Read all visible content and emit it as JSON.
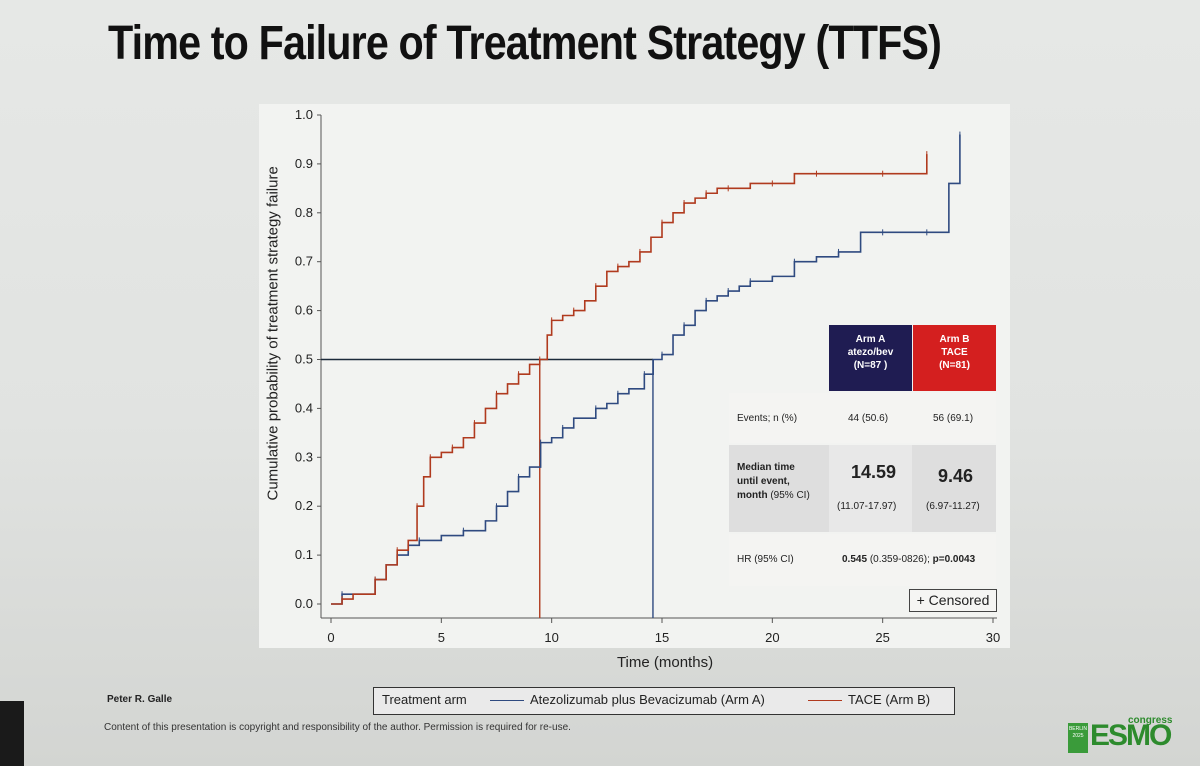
{
  "slide": {
    "title": "Time to Failure of Treatment Strategy (TTFS)",
    "author": "Peter R. Galle",
    "copyright": "Content of this presentation is copyright and responsibility of the author. Permission is required for re-use.",
    "logo": {
      "badge": "BERLIN 2025",
      "word": "ESMO",
      "suffix": "congress"
    }
  },
  "chart_data": {
    "type": "line",
    "title": "",
    "xlabel": "Time (months)",
    "ylabel": "Cumulative probability of treatment strategy failure",
    "xlim": [
      0,
      30
    ],
    "ylim": [
      0,
      1.0
    ],
    "xticks": [
      0,
      5,
      10,
      15,
      20,
      25,
      30
    ],
    "yticks": [
      0.0,
      0.1,
      0.2,
      0.3,
      0.4,
      0.5,
      0.6,
      0.7,
      0.8,
      0.9,
      1.0
    ],
    "grid": false,
    "legend_placement": "bottom",
    "median_reference": {
      "y": 0.5,
      "x_arm_a": 14.59,
      "x_arm_b": 9.46
    },
    "series": [
      {
        "name": "Atezolizumab plus Bevacizumab (Arm A)",
        "color": "#2f4a80",
        "step": true,
        "x": [
          0,
          0.5,
          1.0,
          2.0,
          2.5,
          3.0,
          3.5,
          4.0,
          5.0,
          6.0,
          7.0,
          7.5,
          8.0,
          8.5,
          9.0,
          9.5,
          10.0,
          10.5,
          11.0,
          12.0,
          12.5,
          13.0,
          13.5,
          14.2,
          14.6,
          15.0,
          15.5,
          16.0,
          16.5,
          17.0,
          17.5,
          18.0,
          18.5,
          19.0,
          20.0,
          21.0,
          22.0,
          23.0,
          24.0,
          25.0,
          26.0,
          27.0,
          28.0,
          28.5
        ],
        "y": [
          0.0,
          0.02,
          0.02,
          0.05,
          0.08,
          0.1,
          0.12,
          0.13,
          0.14,
          0.15,
          0.17,
          0.2,
          0.23,
          0.26,
          0.28,
          0.33,
          0.34,
          0.36,
          0.38,
          0.4,
          0.41,
          0.43,
          0.44,
          0.47,
          0.5,
          0.51,
          0.55,
          0.57,
          0.6,
          0.62,
          0.63,
          0.64,
          0.65,
          0.66,
          0.67,
          0.7,
          0.71,
          0.72,
          0.76,
          0.76,
          0.76,
          0.76,
          0.86,
          0.96
        ]
      },
      {
        "name": "TACE (Arm B)",
        "color": "#b03a1e",
        "step": true,
        "x": [
          0,
          0.5,
          1.0,
          2.0,
          2.5,
          3.0,
          3.5,
          3.9,
          4.2,
          4.5,
          5.0,
          5.5,
          6.0,
          6.5,
          7.0,
          7.5,
          8.0,
          8.5,
          9.0,
          9.46,
          9.8,
          10.0,
          10.5,
          11.0,
          11.5,
          12.0,
          12.5,
          13.0,
          13.5,
          14.0,
          14.5,
          15.0,
          15.5,
          16.0,
          16.5,
          17.0,
          17.5,
          18.0,
          19.0,
          20.0,
          21.0,
          22.0,
          24.0,
          25.0,
          26.0,
          27.0
        ],
        "y": [
          0.0,
          0.01,
          0.02,
          0.05,
          0.08,
          0.11,
          0.13,
          0.2,
          0.26,
          0.3,
          0.31,
          0.32,
          0.34,
          0.37,
          0.4,
          0.43,
          0.45,
          0.47,
          0.49,
          0.5,
          0.55,
          0.58,
          0.59,
          0.6,
          0.62,
          0.65,
          0.68,
          0.69,
          0.7,
          0.72,
          0.75,
          0.78,
          0.8,
          0.82,
          0.83,
          0.84,
          0.85,
          0.85,
          0.86,
          0.86,
          0.88,
          0.88,
          0.88,
          0.88,
          0.88,
          0.92
        ]
      }
    ],
    "table": {
      "arm_a_header": [
        "Arm A",
        "atezo/bev",
        "(N=87 )"
      ],
      "arm_b_header": [
        "Arm B",
        "TACE",
        "(N=81)"
      ],
      "events_label": "Events; n (%)",
      "events_a": "44 (50.6)",
      "events_b": "56 (69.1)",
      "median_label_bold": [
        "Median time",
        "until event,",
        "month"
      ],
      "median_label_ci": "(95% CI)",
      "median_a": "14.59",
      "median_a_ci": "(11.07-17.97)",
      "median_b": "9.46",
      "median_b_ci": "(6.97-11.27)",
      "hr_label": "HR (95% CI)",
      "hr_value": "0.545",
      "hr_ci": "(0.359-0826);",
      "hr_p": "p=0.0043"
    },
    "censored_label": "+ Censored",
    "legend": {
      "title": "Treatment arm",
      "entries": [
        "Atezolizumab plus Bevacizumab (Arm A)",
        "TACE (Arm B)"
      ]
    }
  }
}
